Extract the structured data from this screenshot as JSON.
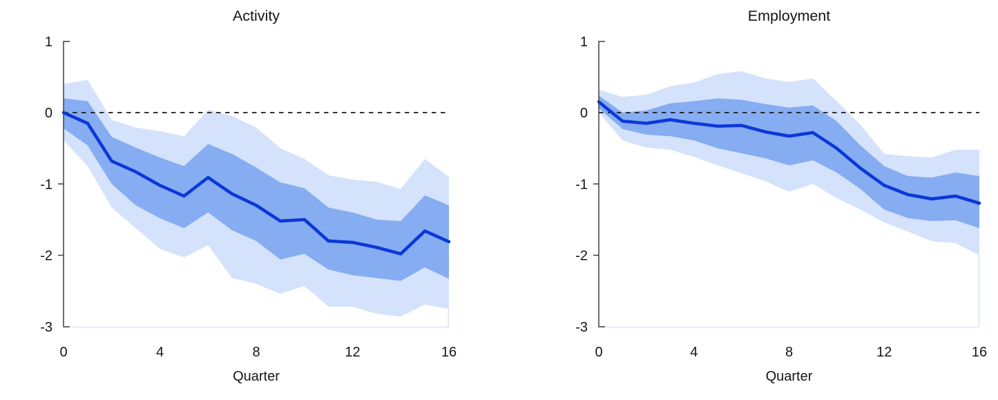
{
  "figure": {
    "background": "#ffffff",
    "panels": 2
  },
  "colors": {
    "median_line": "#0a38d8",
    "inner_band": "#86acf1",
    "outer_band": "#d4e2fb",
    "zero_line": "#161616",
    "y_axis": "#3f3f3f",
    "frame": "#dce7f8",
    "text": "#141414"
  },
  "chart_data": [
    {
      "type": "line",
      "title": "Activity",
      "xlabel": "Quarter",
      "xlim": [
        0,
        16
      ],
      "ylim": [
        -3,
        1
      ],
      "xticks": [
        0,
        4,
        8,
        12,
        16
      ],
      "yticks": [
        1,
        0,
        -1,
        -2,
        -3
      ],
      "grid": false,
      "zero_line": {
        "y": 0,
        "style": "dashed"
      },
      "x": [
        0,
        1,
        2,
        3,
        4,
        5,
        6,
        7,
        8,
        9,
        10,
        11,
        12,
        13,
        14,
        15,
        16
      ],
      "series": [
        {
          "name": "median",
          "values": [
            0.0,
            -0.15,
            -0.68,
            -0.83,
            -1.02,
            -1.17,
            -0.91,
            -1.14,
            -1.3,
            -1.52,
            -1.5,
            -1.8,
            -1.82,
            -1.89,
            -1.98,
            -1.66,
            -1.81
          ]
        }
      ],
      "bands": [
        {
          "name": "inner-credible-band",
          "upper": [
            0.2,
            0.16,
            -0.34,
            -0.49,
            -0.63,
            -0.75,
            -0.44,
            -0.58,
            -0.77,
            -0.98,
            -1.06,
            -1.33,
            -1.4,
            -1.5,
            -1.52,
            -1.16,
            -1.3
          ],
          "lower": [
            -0.22,
            -0.46,
            -1.0,
            -1.3,
            -1.48,
            -1.62,
            -1.4,
            -1.65,
            -1.8,
            -2.06,
            -1.98,
            -2.2,
            -2.28,
            -2.32,
            -2.36,
            -2.17,
            -2.33
          ]
        },
        {
          "name": "outer-credible-band",
          "upper": [
            0.4,
            0.46,
            -0.1,
            -0.21,
            -0.26,
            -0.33,
            0.04,
            -0.05,
            -0.21,
            -0.5,
            -0.65,
            -0.88,
            -0.94,
            -0.97,
            -1.07,
            -0.65,
            -0.9
          ],
          "lower": [
            -0.39,
            -0.75,
            -1.33,
            -1.62,
            -1.91,
            -2.03,
            -1.86,
            -2.32,
            -2.4,
            -2.54,
            -2.43,
            -2.72,
            -2.72,
            -2.82,
            -2.86,
            -2.69,
            -2.75
          ]
        }
      ]
    },
    {
      "type": "line",
      "title": "Employment",
      "xlabel": "Quarter",
      "xlim": [
        0,
        16
      ],
      "ylim": [
        -3,
        1
      ],
      "xticks": [
        0,
        4,
        8,
        12,
        16
      ],
      "yticks": [
        1,
        0,
        -1,
        -2,
        -3
      ],
      "grid": false,
      "zero_line": {
        "y": 0,
        "style": "dashed"
      },
      "x": [
        0,
        1,
        2,
        3,
        4,
        5,
        6,
        7,
        8,
        9,
        10,
        11,
        12,
        13,
        14,
        15,
        16
      ],
      "series": [
        {
          "name": "median",
          "values": [
            0.15,
            -0.12,
            -0.15,
            -0.1,
            -0.15,
            -0.19,
            -0.18,
            -0.27,
            -0.33,
            -0.28,
            -0.5,
            -0.78,
            -1.02,
            -1.15,
            -1.21,
            -1.17,
            -1.27
          ]
        }
      ],
      "bands": [
        {
          "name": "inner-credible-band",
          "upper": [
            0.24,
            0.0,
            0.03,
            0.13,
            0.16,
            0.2,
            0.18,
            0.12,
            0.07,
            0.1,
            -0.12,
            -0.46,
            -0.75,
            -0.89,
            -0.91,
            -0.84,
            -0.89
          ],
          "lower": [
            0.06,
            -0.23,
            -0.31,
            -0.33,
            -0.39,
            -0.5,
            -0.57,
            -0.64,
            -0.74,
            -0.67,
            -0.84,
            -1.07,
            -1.36,
            -1.48,
            -1.52,
            -1.51,
            -1.62
          ]
        },
        {
          "name": "outer-credible-band",
          "upper": [
            0.32,
            0.22,
            0.25,
            0.37,
            0.42,
            0.54,
            0.58,
            0.48,
            0.43,
            0.48,
            0.16,
            -0.17,
            -0.58,
            -0.61,
            -0.63,
            -0.52,
            -0.52
          ],
          "lower": [
            0.0,
            -0.39,
            -0.49,
            -0.52,
            -0.62,
            -0.74,
            -0.85,
            -0.96,
            -1.11,
            -1.0,
            -1.2,
            -1.36,
            -1.54,
            -1.67,
            -1.8,
            -1.83,
            -2.0
          ]
        }
      ]
    }
  ]
}
